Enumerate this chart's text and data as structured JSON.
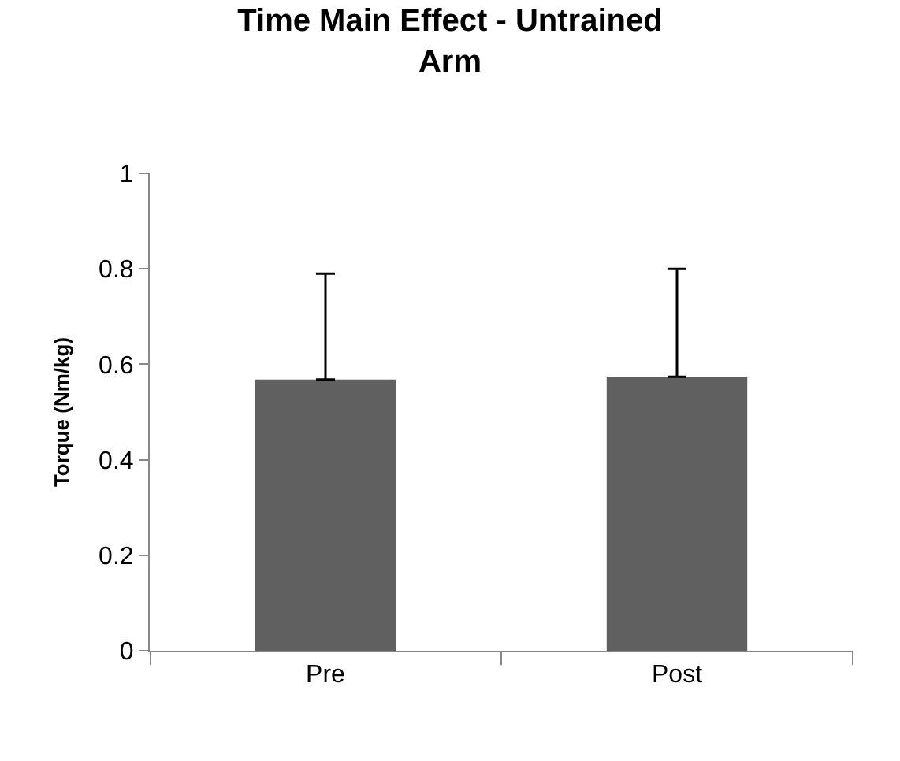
{
  "chart_data": {
    "type": "bar",
    "title": "Time Main Effect - Untrained\nArm",
    "ylabel": "Torque (Nm/kg)",
    "categories": [
      "Pre",
      "Post"
    ],
    "values": [
      0.568,
      0.574
    ],
    "color": "#606060",
    "errors": [
      [
        0.568,
        0.79
      ],
      [
        0.574,
        0.8
      ]
    ],
    "ylim": [
      0,
      1
    ],
    "yticks": [
      0,
      0.2,
      0.4,
      0.6,
      0.8,
      1
    ]
  }
}
